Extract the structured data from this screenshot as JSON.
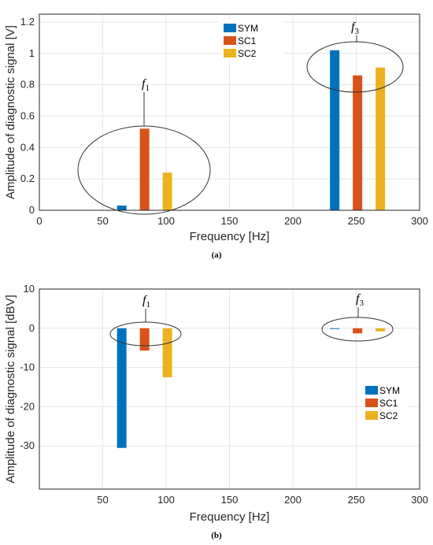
{
  "colors": {
    "SYM": "#0072BD",
    "SC1": "#D95319",
    "SC2": "#EDB120",
    "grid": "#e6e6e6",
    "axis": "#262626"
  },
  "chart_data": [
    {
      "type": "bar",
      "caption": "(a)",
      "xlabel": "Frequency  [Hz]",
      "ylabel": "Amplitude of diagnostic signal [V]",
      "xlim": [
        0,
        300
      ],
      "ylim": [
        0,
        1.25
      ],
      "xticks": [
        "0",
        "50",
        "100",
        "150",
        "200",
        "250",
        "300"
      ],
      "yticks": [
        "0",
        "0.2",
        "0.4",
        "0.6",
        "0.8",
        "1",
        "1.2"
      ],
      "grid": true,
      "legend_position": "top-center",
      "groups": [
        {
          "label": "f1",
          "label_main": "f",
          "label_sub": "1",
          "x": [
            65,
            83,
            101
          ]
        },
        {
          "label": "f3",
          "label_main": "f",
          "label_sub": "3",
          "x": [
            233,
            251,
            269
          ]
        }
      ],
      "series": [
        {
          "name": "SYM",
          "values": [
            0.03,
            1.02
          ]
        },
        {
          "name": "SC1",
          "values": [
            0.52,
            0.86
          ]
        },
        {
          "name": "SC2",
          "values": [
            0.24,
            0.91
          ]
        }
      ]
    },
    {
      "type": "bar",
      "caption": "(b)",
      "xlabel": "Frequency  [Hz]",
      "ylabel": "Amplitude of diagnostic signal [dBV]",
      "xlim": [
        0,
        300
      ],
      "ylim": [
        -41,
        10
      ],
      "xticks": [
        "50",
        "100",
        "150",
        "200",
        "250",
        "300"
      ],
      "yticks": [
        "10",
        "0",
        "-10",
        "-20",
        "-30"
      ],
      "grid": true,
      "legend_position": "right",
      "groups": [
        {
          "label": "f1",
          "label_main": "f",
          "label_sub": "1",
          "x": [
            65,
            83,
            101
          ]
        },
        {
          "label": "f3",
          "label_main": "f",
          "label_sub": "3",
          "x": [
            233,
            251,
            269
          ]
        }
      ],
      "series": [
        {
          "name": "SYM",
          "values": [
            -30.5,
            -0.2
          ]
        },
        {
          "name": "SC1",
          "values": [
            -5.7,
            -1.3
          ]
        },
        {
          "name": "SC2",
          "values": [
            -12.5,
            -0.8
          ]
        }
      ]
    }
  ]
}
